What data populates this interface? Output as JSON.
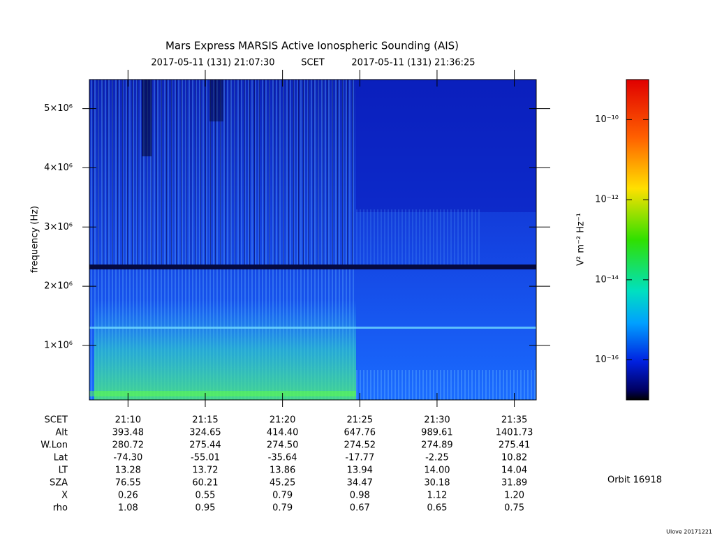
{
  "chart_data": {
    "type": "spectrogram",
    "title": "Mars Express MARSIS Active Ionospheric Sounding (AIS)",
    "subtitle": [
      "2017-05-11 (131) 21:07:30",
      "SCET",
      "2017-05-11 (131) 21:36:25"
    ],
    "ylabel": "frequency (Hz)",
    "ylim": [
      80000,
      5490000
    ],
    "yticks": [
      {
        "value": 1000000,
        "label": "1×10⁶"
      },
      {
        "value": 2000000,
        "label": "2×10⁶"
      },
      {
        "value": 3000000,
        "label": "3×10⁶"
      },
      {
        "value": 4000000,
        "label": "4×10⁶"
      },
      {
        "value": 5000000,
        "label": "5×10⁶"
      }
    ],
    "xlim": [
      7.5,
      36.42
    ],
    "xticks": [
      {
        "value": 10,
        "label": "21:10"
      },
      {
        "value": 15,
        "label": "21:15"
      },
      {
        "value": 20,
        "label": "21:20"
      },
      {
        "value": 25,
        "label": "21:25"
      },
      {
        "value": 30,
        "label": "21:30"
      },
      {
        "value": 35,
        "label": "21:35"
      }
    ],
    "colorbar": {
      "label": "V² m⁻² Hz⁻¹",
      "log": true,
      "lim": [
        1e-17,
        1e-09
      ],
      "ticks": [
        {
          "value": 1e-10,
          "label": "10⁻¹⁰"
        },
        {
          "value": 1e-12,
          "label": "10⁻¹²"
        },
        {
          "value": 1e-14,
          "label": "10⁻¹⁴"
        },
        {
          "value": 1e-16,
          "label": "10⁻¹⁶"
        }
      ]
    },
    "table": {
      "header": "SCET",
      "rows": [
        {
          "label": "Alt",
          "values": [
            "393.48",
            "324.65",
            "414.40",
            "647.76",
            "989.61",
            "1401.73"
          ]
        },
        {
          "label": "W.Lon",
          "values": [
            "280.72",
            "275.44",
            "274.50",
            "274.52",
            "274.89",
            "275.41"
          ]
        },
        {
          "label": "Lat",
          "values": [
            "-74.30",
            "-55.01",
            "-35.64",
            "-17.77",
            "-2.25",
            "10.82"
          ]
        },
        {
          "label": "LT",
          "values": [
            "13.28",
            "13.72",
            "13.86",
            "13.94",
            "14.00",
            "14.04"
          ]
        },
        {
          "label": "SZA",
          "values": [
            "76.55",
            "60.21",
            "45.25",
            "34.47",
            "30.18",
            "31.89"
          ]
        },
        {
          "label": "X",
          "values": [
            "0.26",
            "0.55",
            "0.79",
            "0.98",
            "1.12",
            "1.20"
          ]
        },
        {
          "label": "rho",
          "values": [
            "1.08",
            "0.95",
            "0.79",
            "0.67",
            "0.65",
            "0.75"
          ]
        }
      ]
    },
    "orbit": "Orbit 16918",
    "footer": "Ulove 20171221"
  }
}
